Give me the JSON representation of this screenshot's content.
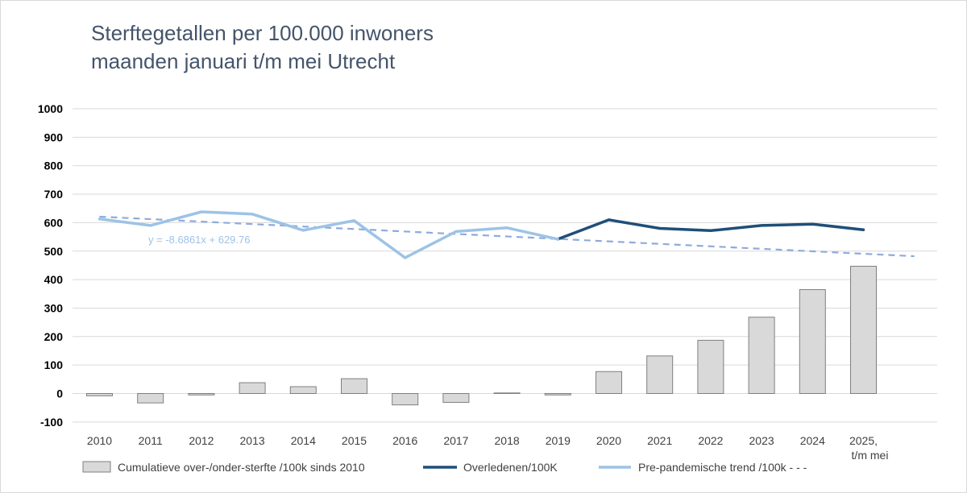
{
  "title_line1": "Sterftegetallen per 100.000 inwoners",
  "title_line2": "maanden januari t/m mei Utrecht",
  "colors": {
    "bars_fill": "#d9d9d9",
    "bars_stroke": "#7f7f7f",
    "observed": "#1f4e79",
    "trend": "#9dc3e6",
    "trendline": "#8faadc",
    "grid": "#d9d9d9"
  },
  "chart_data": {
    "type": "bar",
    "categories": [
      "2010",
      "2011",
      "2012",
      "2013",
      "2014",
      "2015",
      "2016",
      "2017",
      "2018",
      "2019",
      "2020",
      "2021",
      "2022",
      "2023",
      "2024",
      "2025,\nt/m mei"
    ],
    "ylim": [
      -100,
      1000
    ],
    "yticks": [
      -100,
      0,
      100,
      200,
      300,
      400,
      500,
      600,
      700,
      800,
      900,
      1000
    ],
    "grid": true,
    "legend_position": "bottom",
    "series": [
      {
        "name": "Cumulatieve over-/onder-sterfte /100k sinds 2010",
        "kind": "bar",
        "values": [
          -8,
          -33,
          -5,
          38,
          24,
          52,
          -40,
          -31,
          2,
          -5,
          77,
          132,
          187,
          268,
          365,
          447
        ]
      },
      {
        "name": "Overledenen/100K",
        "kind": "line",
        "values": [
          null,
          null,
          null,
          null,
          null,
          null,
          null,
          null,
          null,
          542,
          610,
          580,
          572,
          590,
          595,
          575
        ]
      },
      {
        "name": "Pre-pandemische trend /100k - - -",
        "kind": "line",
        "values": [
          613,
          590,
          638,
          630,
          573,
          607,
          477,
          569,
          582,
          542,
          null,
          null,
          null,
          null,
          null,
          null
        ]
      }
    ],
    "trendline": {
      "slope": -8.6861,
      "intercept": 629.76,
      "x_extent": [
        1,
        17
      ],
      "label": "y = -8.6861x + 629.76"
    }
  }
}
